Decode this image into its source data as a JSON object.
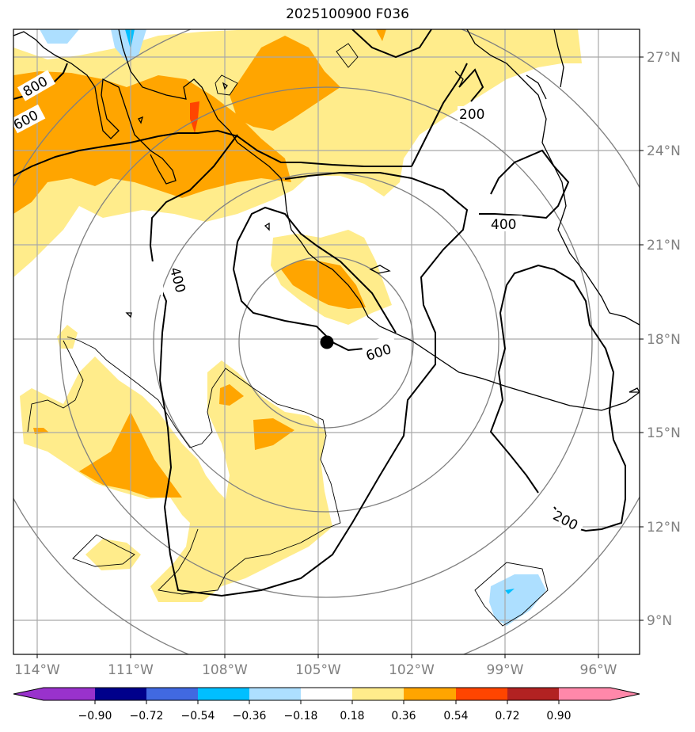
{
  "title": "2025100900 F036",
  "colors": {
    "c_neg090": "#9932CC",
    "c_neg072": "#00008B",
    "c_neg054": "#4169E1",
    "c_neg036": "#00BFFF",
    "c_neg018": "#ADDFFF",
    "c_zero": "#FFFFFF",
    "c_pos018": "#FFEC8B",
    "c_pos036": "#FFA500",
    "c_pos054": "#FF4500",
    "c_pos072": "#B22222",
    "c_pos090": "#FF88AA",
    "grid": "#A9A9A9",
    "range_ring": "#808080",
    "coast": "#000000",
    "contour": "#000000"
  },
  "map": {
    "projection": "lat-lon",
    "extent": {
      "lon_min": -114.75,
      "lon_max": -94.65,
      "lat_min": 7.9,
      "lat_max": 27.8
    },
    "lat_labels": [
      "27°N",
      "24°N",
      "21°N",
      "18°N",
      "15°N",
      "12°N",
      "9°N"
    ],
    "lon_labels": [
      "114°W",
      "111°W",
      "108°W",
      "105°W",
      "102°W",
      "99°W",
      "96°W"
    ],
    "storm_center": {
      "lon": -104.75,
      "lat": 17.85
    },
    "contour_labels": [
      "800",
      "600",
      "200",
      "400",
      "400",
      "600",
      "200"
    ]
  },
  "colorbar": {
    "levels": [
      "−0.90",
      "−0.72",
      "−0.54",
      "−0.36",
      "−0.18",
      "0.18",
      "0.36",
      "0.54",
      "0.72",
      "0.90"
    ],
    "has_under_extension": true,
    "has_over_extension": true
  }
}
